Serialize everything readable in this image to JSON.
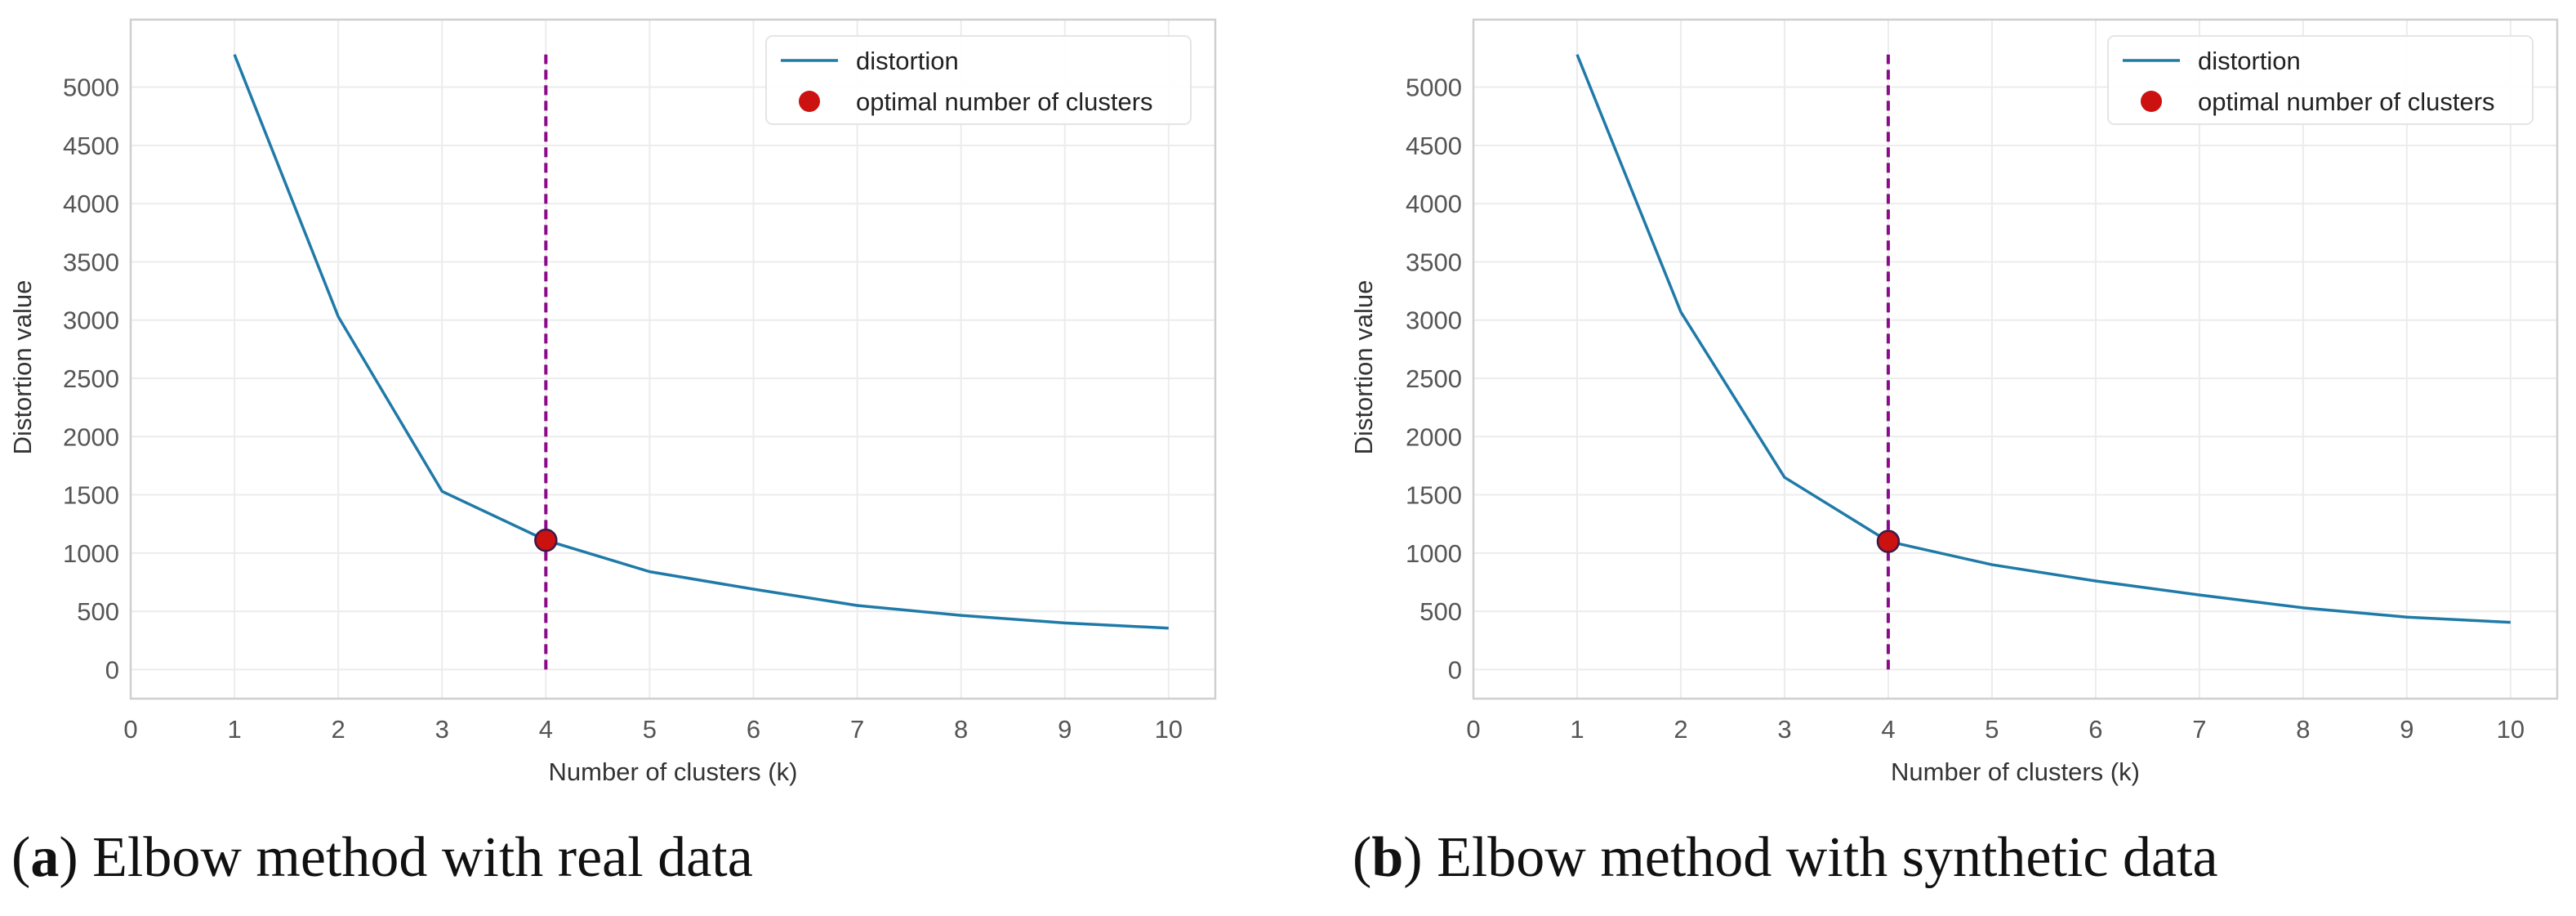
{
  "chart_data": [
    {
      "id": "a",
      "type": "line",
      "xlabel": "Number of clusters (k)",
      "ylabel": "Distortion value",
      "xlim": [
        0,
        10.45
      ],
      "ylim": [
        -250,
        5580
      ],
      "x_ticks": [
        0,
        1,
        2,
        3,
        4,
        5,
        6,
        7,
        8,
        9,
        10
      ],
      "y_ticks": [
        0,
        500,
        1000,
        1500,
        2000,
        2500,
        3000,
        3500,
        4000,
        4500,
        5000
      ],
      "grid": true,
      "legend_position": "top-right",
      "legend": [
        "distortion",
        "optimal number of clusters"
      ],
      "series": [
        {
          "name": "distortion",
          "color": "#1f7aa8",
          "x": [
            1,
            2,
            3,
            4,
            5,
            6,
            7,
            8,
            9,
            10
          ],
          "values": [
            5280,
            3030,
            1530,
            1110,
            840,
            690,
            550,
            465,
            400,
            355
          ]
        }
      ],
      "optimal": {
        "name": "optimal number of clusters",
        "x": 4,
        "y": 1110,
        "color": "#cc1111"
      },
      "vline": {
        "x": 4,
        "y_from": 0,
        "y_to": 5280,
        "color": "#8b0a8b",
        "style": "dashed"
      },
      "caption": {
        "label": "a",
        "open": "(",
        "close": ")",
        "text": " Elbow method with real data"
      }
    },
    {
      "id": "b",
      "type": "line",
      "xlabel": "Number of clusters (k)",
      "ylabel": "Distortion value",
      "xlim": [
        0,
        10.45
      ],
      "ylim": [
        -250,
        5580
      ],
      "x_ticks": [
        0,
        1,
        2,
        3,
        4,
        5,
        6,
        7,
        8,
        9,
        10
      ],
      "y_ticks": [
        0,
        500,
        1000,
        1500,
        2000,
        2500,
        3000,
        3500,
        4000,
        4500,
        5000
      ],
      "grid": true,
      "legend_position": "top-right",
      "legend": [
        "distortion",
        "optimal number of clusters"
      ],
      "series": [
        {
          "name": "distortion",
          "color": "#1f7aa8",
          "x": [
            1,
            2,
            3,
            4,
            5,
            6,
            7,
            8,
            9,
            10
          ],
          "values": [
            5280,
            3070,
            1650,
            1100,
            900,
            760,
            640,
            530,
            450,
            405
          ]
        }
      ],
      "optimal": {
        "name": "optimal number of clusters",
        "x": 4,
        "y": 1100,
        "color": "#cc1111"
      },
      "vline": {
        "x": 4,
        "y_from": 0,
        "y_to": 5280,
        "color": "#8b0a8b",
        "style": "dashed"
      },
      "caption": {
        "label": "b",
        "open": "(",
        "close": ")",
        "text": " Elbow method with synthetic data"
      }
    }
  ]
}
